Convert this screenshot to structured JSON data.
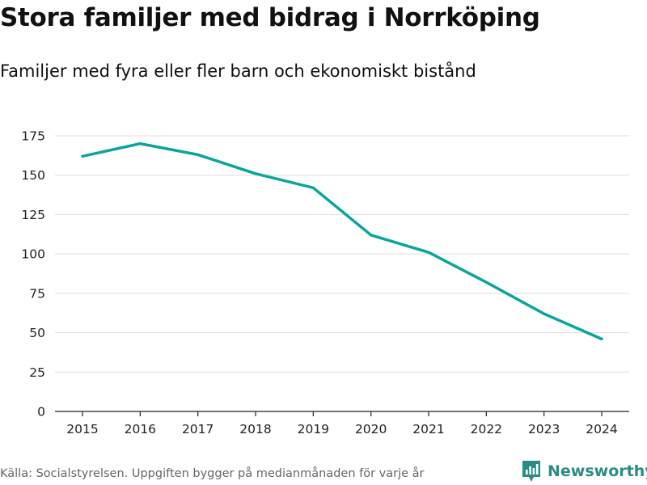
{
  "chart_data": {
    "type": "line",
    "title": "Stora familjer med bidrag i Norrköping",
    "subtitle": "Familjer med fyra eller fler barn och ekonomiskt bistånd",
    "xlabel": "",
    "ylabel": "",
    "x": [
      "2015",
      "2016",
      "2017",
      "2018",
      "2019",
      "2020",
      "2021",
      "2022",
      "2023",
      "2024"
    ],
    "series": [
      {
        "name": "Familjer",
        "values": [
          162,
          170,
          163,
          151,
          142,
          112,
          101,
          82,
          62,
          46
        ]
      }
    ],
    "ylim": [
      0,
      175
    ],
    "yticks": [
      "0",
      "25",
      "50",
      "75",
      "100",
      "125",
      "150",
      "175"
    ],
    "grid": true,
    "line_color": "#0aa59c",
    "grid_color": "#dddddd",
    "axis_color": "#222222"
  },
  "footer": {
    "source": "Källa: Socialstyrelsen. Uppgiften bygger på medianmånaden för varje år",
    "brand": "Newsworthy",
    "brand_color": "#2a8c86",
    "brand_icon": "newsworthy-logo-icon"
  }
}
